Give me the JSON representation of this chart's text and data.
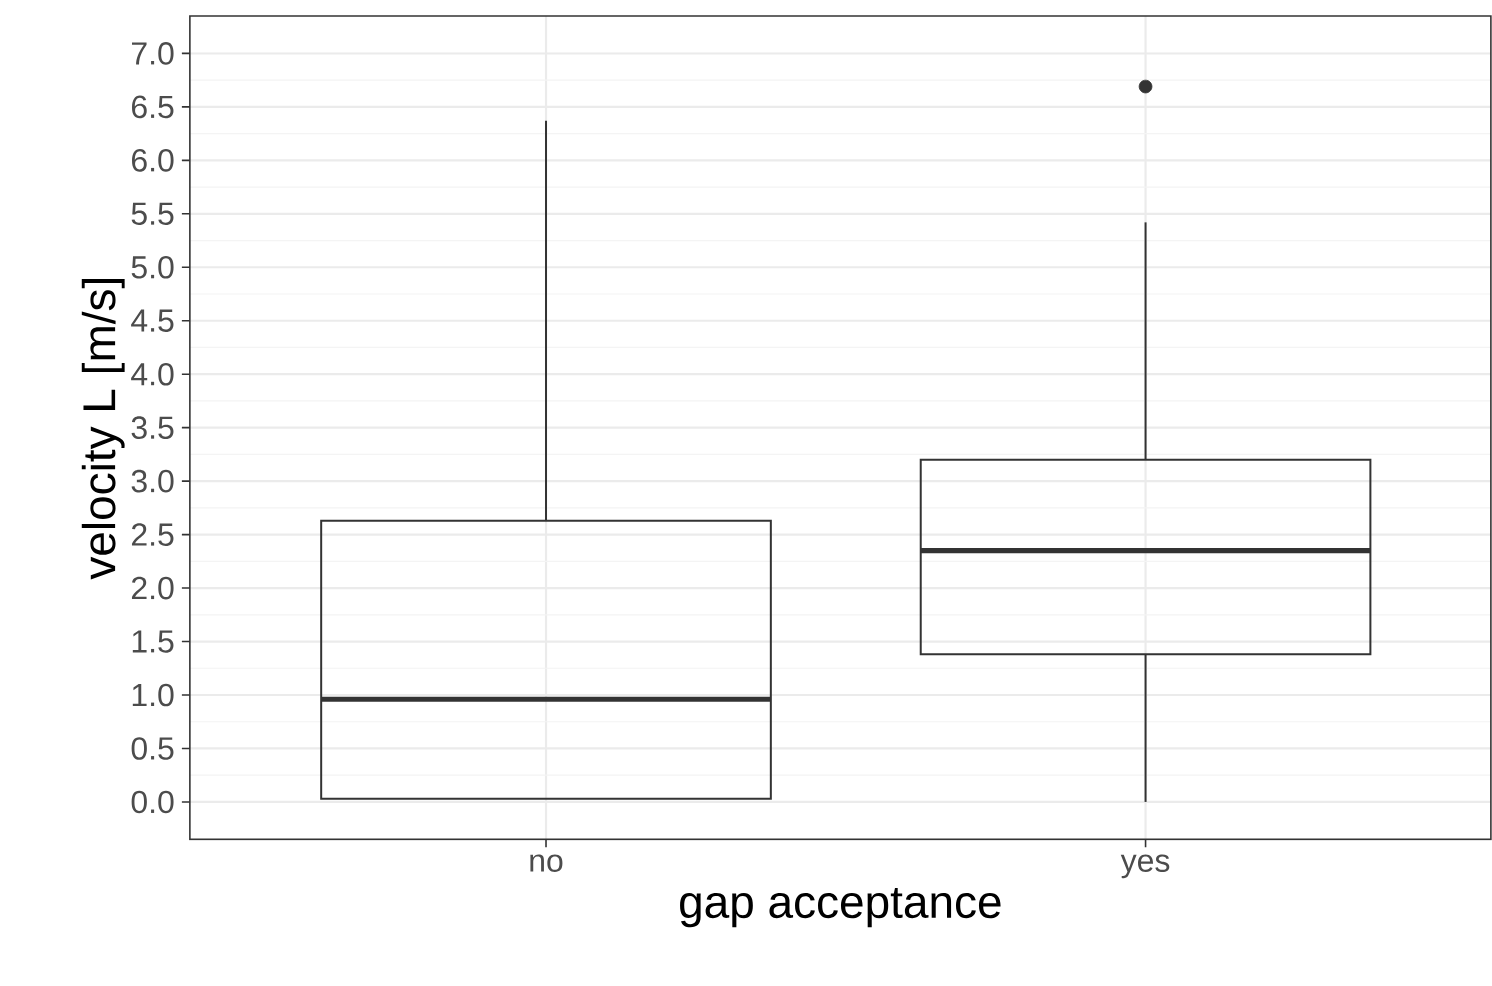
{
  "chart_data": {
    "type": "box",
    "xlabel": "gap acceptance",
    "ylabel": "velocity L [m/s]",
    "categories": [
      "no",
      "yes"
    ],
    "boxes": [
      {
        "low": 0.03,
        "q1": 0.03,
        "median": 0.96,
        "q3": 2.63,
        "high": 6.37
      },
      {
        "low": 0.0,
        "q1": 1.38,
        "median": 2.35,
        "q3": 3.2,
        "high": 5.42,
        "outliers": [
          6.69
        ]
      }
    ],
    "ylim": [
      -0.35,
      7.35
    ],
    "yticks": [
      {
        "value": 0,
        "label": "0.0"
      },
      {
        "value": 0.5,
        "label": "0.5"
      },
      {
        "value": 1,
        "label": "1.0"
      },
      {
        "value": 1.5,
        "label": "1.5"
      },
      {
        "value": 2,
        "label": "2.0"
      },
      {
        "value": 2.5,
        "label": "2.5"
      },
      {
        "value": 3,
        "label": "3.0"
      },
      {
        "value": 3.5,
        "label": "3.5"
      },
      {
        "value": 4,
        "label": "4.0"
      },
      {
        "value": 4.5,
        "label": "4.5"
      },
      {
        "value": 5,
        "label": "5.0"
      },
      {
        "value": 5.5,
        "label": "5.5"
      },
      {
        "value": 6,
        "label": "6.0"
      },
      {
        "value": 6.5,
        "label": "6.5"
      },
      {
        "value": 7,
        "label": "7.0"
      }
    ],
    "grid": true
  }
}
